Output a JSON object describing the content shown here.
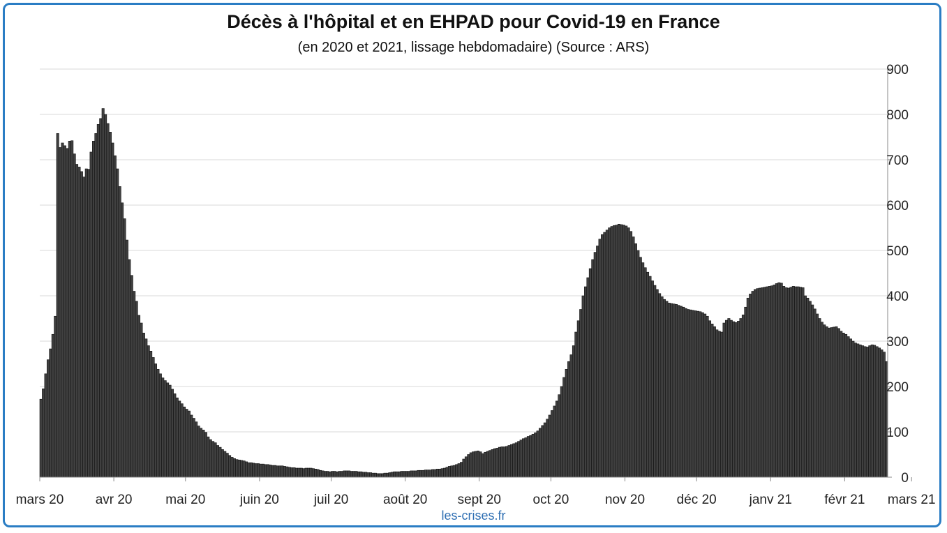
{
  "chart_data": {
    "type": "bar",
    "title": "Décès à l'hôpital et en EHPAD pour Covid-19 en France",
    "subtitle": "(en 2020 et 2021, lissage hebdomadaire) (Source : ARS)",
    "ylim": [
      0,
      900
    ],
    "y_ticks": [
      0,
      100,
      200,
      300,
      400,
      500,
      600,
      700,
      800,
      900
    ],
    "y_axis_side": "right",
    "grid": true,
    "x_ticks": [
      "mars 20",
      "avr 20",
      "mai 20",
      "juin 20",
      "juil 20",
      "août 20",
      "sept 20",
      "oct 20",
      "nov 20",
      "déc 20",
      "janv 21",
      "févr 21",
      "mars 21"
    ],
    "x_tick_positions": [
      0,
      31,
      61,
      92,
      122,
      153,
      184,
      214,
      245,
      275,
      306,
      337,
      365
    ],
    "series": [
      {
        "name": "",
        "color": "#404040",
        "values": [
          172,
          195,
          228,
          259,
          283,
          315,
          355,
          758,
          727,
          737,
          731,
          725,
          741,
          742,
          713,
          690,
          684,
          674,
          662,
          680,
          679,
          717,
          741,
          758,
          778,
          791,
          813,
          800,
          780,
          761,
          737,
          709,
          680,
          641,
          605,
          570,
          523,
          480,
          445,
          410,
          388,
          357,
          340,
          318,
          305,
          290,
          278,
          264,
          250,
          238,
          228,
          219,
          213,
          208,
          203,
          194,
          184,
          175,
          168,
          162,
          155,
          150,
          146,
          137,
          130,
          122,
          113,
          108,
          104,
          99,
          89,
          83,
          79,
          76,
          70,
          66,
          61,
          57,
          53,
          48,
          44,
          41,
          39,
          38,
          37,
          36,
          34,
          32,
          32,
          31,
          30,
          30,
          29,
          29,
          28,
          28,
          27,
          26,
          26,
          25,
          25,
          25,
          24,
          23,
          22,
          21,
          21,
          20,
          20,
          20,
          19,
          20,
          20,
          20,
          19,
          18,
          17,
          15,
          14,
          13,
          13,
          12,
          13,
          13,
          12,
          13,
          13,
          14,
          14,
          14,
          13,
          13,
          13,
          12,
          12,
          11,
          11,
          10,
          10,
          9,
          9,
          8,
          8,
          8,
          9,
          9,
          10,
          11,
          12,
          12,
          12,
          13,
          13,
          13,
          13,
          14,
          14,
          14,
          15,
          15,
          15,
          16,
          16,
          16,
          17,
          17,
          18,
          18,
          19,
          20,
          22,
          24,
          25,
          26,
          28,
          30,
          33,
          40,
          45,
          50,
          54,
          56,
          57,
          58,
          56,
          52,
          55,
          57,
          59,
          61,
          63,
          64,
          66,
          67,
          67,
          68,
          70,
          72,
          74,
          76,
          79,
          82,
          85,
          87,
          90,
          92,
          95,
          98,
          102,
          108,
          114,
          120,
          128,
          137,
          147,
          157,
          168,
          182,
          200,
          220,
          238,
          255,
          270,
          290,
          320,
          345,
          370,
          400,
          420,
          440,
          460,
          480,
          496,
          510,
          525,
          535,
          540,
          545,
          550,
          553,
          555,
          556,
          558,
          557,
          556,
          554,
          550,
          542,
          530,
          515,
          500,
          485,
          473,
          462,
          452,
          443,
          433,
          423,
          414,
          405,
          398,
          392,
          388,
          384,
          383,
          382,
          381,
          379,
          377,
          375,
          372,
          370,
          369,
          368,
          367,
          366,
          365,
          363,
          360,
          355,
          345,
          338,
          332,
          325,
          322,
          320,
          340,
          346,
          350,
          346,
          343,
          341,
          344,
          350,
          358,
          375,
          395,
          404,
          410,
          414,
          416,
          417,
          418,
          419,
          420,
          421,
          422,
          424,
          427,
          429,
          428,
          421,
          418,
          417,
          419,
          421,
          420,
          420,
          419,
          418,
          400,
          395,
          388,
          380,
          371,
          360,
          350,
          342,
          336,
          332,
          329,
          330,
          331,
          332,
          328,
          322,
          318,
          315,
          310,
          305,
          300,
          296,
          294,
          292,
          290,
          288,
          287,
          290,
          292,
          291,
          288,
          285,
          281,
          276,
          255
        ]
      }
    ]
  },
  "watermark": "les-crises.fr"
}
